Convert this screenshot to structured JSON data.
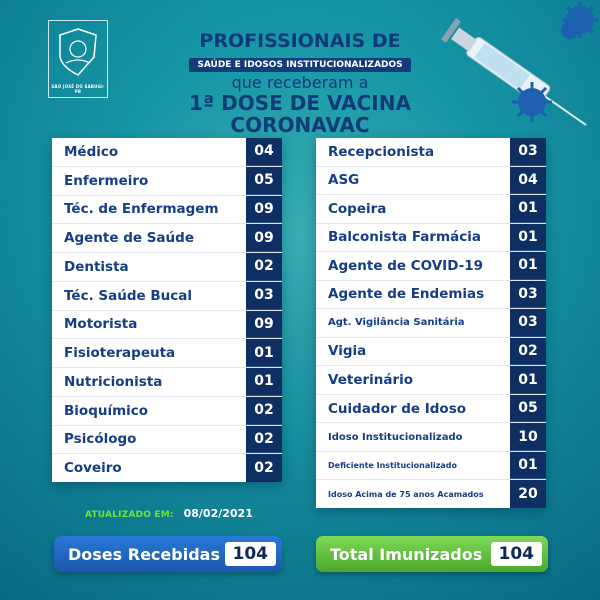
{
  "logo": {
    "caption": "SÃO JOSÉ DO SABUGI-PB"
  },
  "title": {
    "line1": "PROFISSIONAIS DE",
    "banner": "SAÚDE E IDOSOS INSTITUCIONALIZADOS",
    "line3": "que receberam a",
    "line4": "1ª DOSE DE VACINA",
    "line5": "CORONAVAC"
  },
  "left_table": [
    {
      "label": "Médico",
      "value": "04"
    },
    {
      "label": "Enfermeiro",
      "value": "05"
    },
    {
      "label": "Téc. de Enfermagem",
      "value": "09"
    },
    {
      "label": "Agente de Saúde",
      "value": "09"
    },
    {
      "label": "Dentista",
      "value": "02"
    },
    {
      "label": "Téc. Saúde Bucal",
      "value": "03"
    },
    {
      "label": "Motorista",
      "value": "09"
    },
    {
      "label": "Fisioterapeuta",
      "value": "01"
    },
    {
      "label": "Nutricionista",
      "value": "01"
    },
    {
      "label": "Bioquímico",
      "value": "02"
    },
    {
      "label": "Psicólogo",
      "value": "02"
    },
    {
      "label": "Coveiro",
      "value": "02"
    }
  ],
  "right_table": [
    {
      "label": "Recepcionista",
      "value": "03"
    },
    {
      "label": "ASG",
      "value": "04"
    },
    {
      "label": "Copeira",
      "value": "01"
    },
    {
      "label": "Balconista Farmácia",
      "value": "01"
    },
    {
      "label": "Agente de COVID-19",
      "value": "01"
    },
    {
      "label": "Agente de Endemias",
      "value": "03"
    },
    {
      "label": "Agt. Vigilância Sanitária",
      "value": "03"
    },
    {
      "label": "Vigia",
      "value": "02"
    },
    {
      "label": "Veterinário",
      "value": "01"
    },
    {
      "label": "Cuidador de Idoso",
      "value": "05"
    },
    {
      "label": "Idoso Institucionalizado",
      "value": "10"
    },
    {
      "label": "Deficiente Institucionalizado",
      "value": "01"
    },
    {
      "label": "Idoso Acima de 75 anos Acamados",
      "value": "20"
    }
  ],
  "updated": {
    "label": "ATUALIZADO EM:",
    "date": "08/02/2021"
  },
  "totals": {
    "doses_label": "Doses Recebidas",
    "doses_value": "104",
    "imunizados_label": "Total Imunizados",
    "imunizados_value": "104"
  },
  "colors": {
    "navy": "#0f2f63",
    "label_blue": "#163d85",
    "green": "#74e03a",
    "pill_blue": "#1a58ad",
    "pill_green": "#4aa82e"
  }
}
